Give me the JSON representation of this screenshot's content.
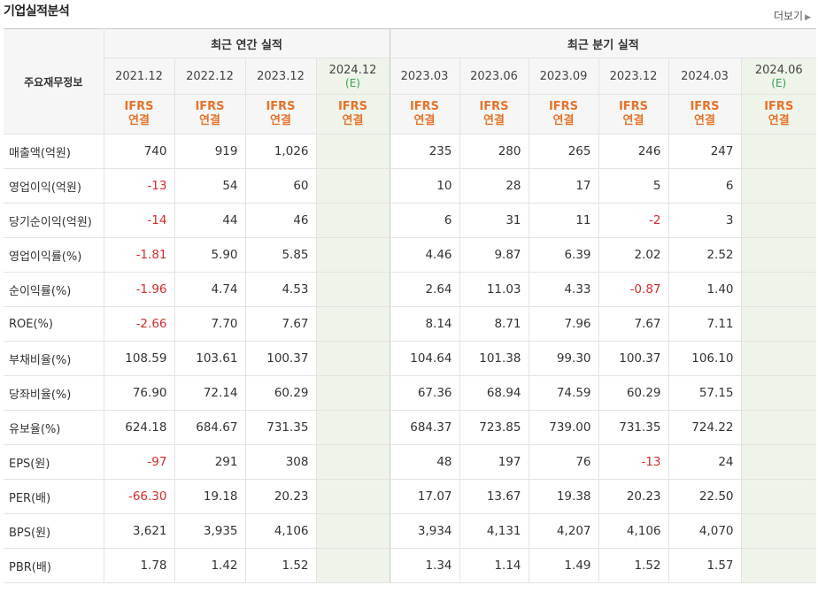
{
  "title": "기업실적분석",
  "more_label": "더보기",
  "header": {
    "row_label": "주요재무정보",
    "annual_group": "최근 연간 실적",
    "quarter_group": "최근 분기 실적",
    "annual_periods": [
      {
        "date": "2021.12",
        "estimate": ""
      },
      {
        "date": "2022.12",
        "estimate": ""
      },
      {
        "date": "2023.12",
        "estimate": ""
      },
      {
        "date": "2024.12",
        "estimate": "(E)"
      }
    ],
    "quarter_periods": [
      {
        "date": "2023.03",
        "estimate": ""
      },
      {
        "date": "2023.06",
        "estimate": ""
      },
      {
        "date": "2023.09",
        "estimate": ""
      },
      {
        "date": "2023.12",
        "estimate": ""
      },
      {
        "date": "2024.03",
        "estimate": ""
      },
      {
        "date": "2024.06",
        "estimate": "(E)"
      }
    ],
    "standard_line1": "IFRS",
    "standard_line2": "연결"
  },
  "rows": [
    {
      "label": "매출액(억원)",
      "annual": [
        "740",
        "919",
        "1,026",
        ""
      ],
      "quarter": [
        "235",
        "280",
        "265",
        "246",
        "247",
        ""
      ],
      "group_start": true
    },
    {
      "label": "영업이익(억원)",
      "annual": [
        "-13",
        "54",
        "60",
        ""
      ],
      "quarter": [
        "10",
        "28",
        "17",
        "5",
        "6",
        ""
      ]
    },
    {
      "label": "당기순이익(억원)",
      "annual": [
        "-14",
        "44",
        "46",
        ""
      ],
      "quarter": [
        "6",
        "31",
        "11",
        "-2",
        "3",
        ""
      ]
    },
    {
      "label": "영업이익률(%)",
      "annual": [
        "-1.81",
        "5.90",
        "5.85",
        ""
      ],
      "quarter": [
        "4.46",
        "9.87",
        "6.39",
        "2.02",
        "2.52",
        ""
      ],
      "group_start": true
    },
    {
      "label": "순이익률(%)",
      "annual": [
        "-1.96",
        "4.74",
        "4.53",
        ""
      ],
      "quarter": [
        "2.64",
        "11.03",
        "4.33",
        "-0.87",
        "1.40",
        ""
      ]
    },
    {
      "label": "ROE(%)",
      "annual": [
        "-2.66",
        "7.70",
        "7.67",
        ""
      ],
      "quarter": [
        "8.14",
        "8.71",
        "7.96",
        "7.67",
        "7.11",
        ""
      ]
    },
    {
      "label": "부채비율(%)",
      "annual": [
        "108.59",
        "103.61",
        "100.37",
        ""
      ],
      "quarter": [
        "104.64",
        "101.38",
        "99.30",
        "100.37",
        "106.10",
        ""
      ],
      "group_start": true
    },
    {
      "label": "당좌비율(%)",
      "annual": [
        "76.90",
        "72.14",
        "60.29",
        ""
      ],
      "quarter": [
        "67.36",
        "68.94",
        "74.59",
        "60.29",
        "57.15",
        ""
      ]
    },
    {
      "label": "유보율(%)",
      "annual": [
        "624.18",
        "684.67",
        "731.35",
        ""
      ],
      "quarter": [
        "684.37",
        "723.85",
        "739.00",
        "731.35",
        "724.22",
        ""
      ]
    },
    {
      "label": "EPS(원)",
      "annual": [
        "-97",
        "291",
        "308",
        ""
      ],
      "quarter": [
        "48",
        "197",
        "76",
        "-13",
        "24",
        ""
      ],
      "group_start": true
    },
    {
      "label": "PER(배)",
      "annual": [
        "-66.30",
        "19.18",
        "20.23",
        ""
      ],
      "quarter": [
        "17.07",
        "13.67",
        "19.38",
        "20.23",
        "22.50",
        ""
      ]
    },
    {
      "label": "BPS(원)",
      "annual": [
        "3,621",
        "3,935",
        "4,106",
        ""
      ],
      "quarter": [
        "3,934",
        "4,131",
        "4,207",
        "4,106",
        "4,070",
        ""
      ]
    },
    {
      "label": "PBR(배)",
      "annual": [
        "1.78",
        "1.42",
        "1.52",
        ""
      ],
      "quarter": [
        "1.34",
        "1.14",
        "1.49",
        "1.52",
        "1.57",
        ""
      ]
    }
  ],
  "colors": {
    "negative": "#d62b2b",
    "standard": "#e6732a",
    "estimate_bg": "#eef4ea",
    "estimate_text": "#3aa04f"
  }
}
